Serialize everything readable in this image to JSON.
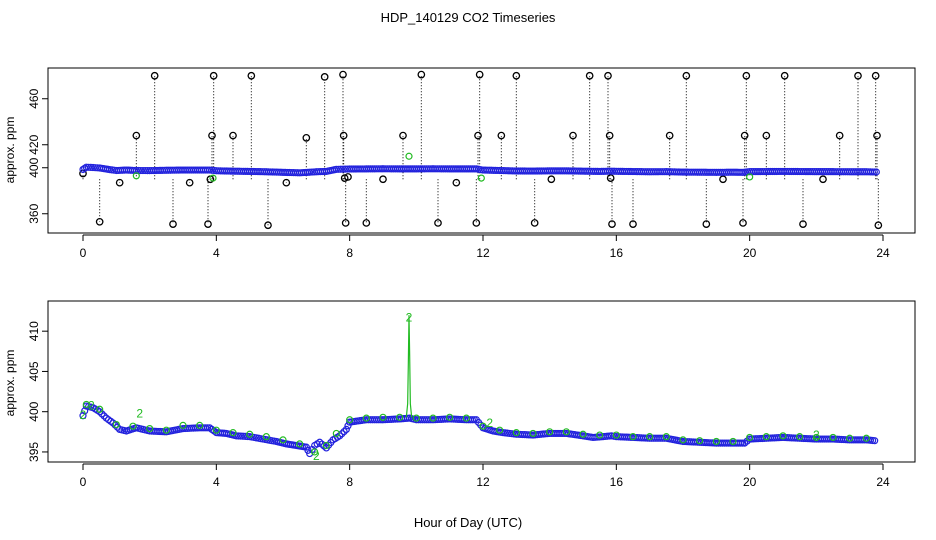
{
  "figure": {
    "title": "HDP_140129  CO2 Timeseries",
    "shared_xlabel": "Hour of Day (UTC)"
  },
  "colors": {
    "axis": "#000000",
    "raw_marker": "#000000",
    "blue_marker": "#2222dd",
    "green_marker": "#22bb22",
    "spike_line": "#000000"
  },
  "chart_data": [
    {
      "type": "scatter",
      "ylabel": "approx. ppm",
      "xlim": [
        0,
        24
      ],
      "ylim": [
        345,
        485
      ],
      "xticks": [
        0,
        4,
        8,
        12,
        16,
        20,
        24
      ],
      "yticks": [
        360,
        400,
        420,
        460
      ],
      "series": [
        {
          "marker": "circle-black",
          "x": [
            0.0,
            0.5,
            1.1,
            1.6,
            2.15,
            2.7,
            3.2,
            3.75,
            3.82,
            3.87,
            3.92,
            4.5,
            5.05,
            5.55,
            6.1,
            6.7,
            7.25,
            7.8,
            7.82,
            7.85,
            7.88,
            7.95,
            8.5,
            9.0,
            9.6,
            10.15,
            10.65,
            11.2,
            11.8,
            11.85,
            11.9,
            12.55,
            13.0,
            13.55,
            14.05,
            14.7,
            15.2,
            15.75,
            15.8,
            15.83,
            15.87,
            16.5,
            17.6,
            18.1,
            18.7,
            19.2,
            19.8,
            19.85,
            19.9,
            20.5,
            21.05,
            21.6,
            22.2,
            22.7,
            23.25,
            23.78,
            23.82,
            23.86
          ],
          "y": [
            395,
            353,
            387,
            428,
            480,
            351,
            387,
            351,
            390,
            428,
            480,
            428,
            480,
            350,
            387,
            426,
            479,
            481,
            428,
            391,
            352,
            392,
            352,
            390,
            428,
            481,
            352,
            387,
            352,
            428,
            481,
            428,
            480,
            352,
            390,
            428,
            480,
            480,
            428,
            391,
            351,
            351,
            428,
            480,
            351,
            390,
            352,
            428,
            480,
            428,
            480,
            351,
            390,
            428,
            480,
            480,
            428,
            350
          ]
        },
        {
          "marker": "circle-blue",
          "x": [
            0.0,
            0.1,
            0.3,
            0.5,
            0.8,
            1.0,
            1.3,
            1.6,
            2.0,
            2.5,
            3.0,
            3.5,
            3.8,
            4.0,
            4.5,
            5.0,
            5.5,
            6.0,
            6.5,
            6.8,
            7.0,
            7.3,
            7.6,
            8.0,
            8.5,
            9.0,
            9.5,
            10.0,
            10.5,
            11.0,
            11.5,
            11.8,
            12.0,
            12.5,
            13.0,
            13.5,
            14.0,
            14.5,
            15.0,
            15.5,
            15.8,
            16.0,
            16.5,
            17.0,
            17.5,
            18.0,
            18.5,
            19.0,
            19.5,
            19.8,
            20.0,
            20.5,
            21.0,
            21.5,
            22.0,
            22.5,
            23.0,
            23.5,
            23.8
          ],
          "y": [
            398.5,
            400.5,
            400.2,
            399.8,
            398.4,
            397.6,
            398.0,
            397.6,
            397.5,
            397.8,
            398.0,
            398.0,
            398.0,
            397.4,
            397.0,
            396.8,
            396.5,
            396.0,
            395.6,
            396.1,
            396.5,
            396.8,
            398.6,
            398.9,
            399.0,
            399.1,
            399.0,
            399.0,
            399.1,
            399.0,
            399.0,
            399.0,
            398.0,
            397.6,
            397.2,
            397.1,
            397.3,
            397.3,
            397.0,
            396.8,
            397.0,
            396.9,
            396.7,
            396.5,
            396.6,
            396.2,
            396.1,
            396.0,
            396.1,
            396.0,
            396.6,
            396.7,
            396.8,
            396.7,
            396.6,
            396.6,
            396.5,
            396.5,
            396.3
          ]
        },
        {
          "marker": "circle-green",
          "x": [
            1.6,
            3.9,
            9.78,
            11.95,
            20.0
          ],
          "y": [
            393,
            391,
            410,
            391,
            392
          ]
        }
      ]
    },
    {
      "type": "scatter",
      "ylabel": "approx. ppm",
      "xlim": [
        0,
        24
      ],
      "ylim": [
        394,
        413.5
      ],
      "xticks": [
        0,
        4,
        8,
        12,
        16,
        20,
        24
      ],
      "yticks": [
        395,
        400,
        405,
        410
      ],
      "series": [
        {
          "marker": "circle-blue",
          "x": [
            0.0,
            0.1,
            0.3,
            0.5,
            0.7,
            0.9,
            1.1,
            1.3,
            1.6,
            2.0,
            2.5,
            3.0,
            3.5,
            3.8,
            4.0,
            4.3,
            4.6,
            5.0,
            5.4,
            5.8,
            6.1,
            6.4,
            6.7,
            6.8,
            6.95,
            7.1,
            7.3,
            7.5,
            7.7,
            7.9,
            8.0,
            8.5,
            9.0,
            9.5,
            9.8,
            10.0,
            10.5,
            11.0,
            11.5,
            11.8,
            12.0,
            12.3,
            12.6,
            13.0,
            13.5,
            14.0,
            14.5,
            15.0,
            15.3,
            15.6,
            15.85,
            16.0,
            16.5,
            17.0,
            17.5,
            18.0,
            18.5,
            19.0,
            19.5,
            19.85,
            20.0,
            20.5,
            21.0,
            21.5,
            22.0,
            22.5,
            23.0,
            23.5,
            23.75
          ],
          "y": [
            399.5,
            400.7,
            400.5,
            400.0,
            399.2,
            398.6,
            397.8,
            397.6,
            398.0,
            397.6,
            397.5,
            397.9,
            398.0,
            398.0,
            397.4,
            397.3,
            397.0,
            396.9,
            396.6,
            396.3,
            396.0,
            395.8,
            395.6,
            394.8,
            395.8,
            396.2,
            395.5,
            396.5,
            397.0,
            397.8,
            398.7,
            399.0,
            399.0,
            399.1,
            399.2,
            399.0,
            399.0,
            399.1,
            399.0,
            399.0,
            398.0,
            397.6,
            397.4,
            397.2,
            397.1,
            397.3,
            397.3,
            397.0,
            396.8,
            396.9,
            397.0,
            396.9,
            396.8,
            396.7,
            396.7,
            396.3,
            396.2,
            396.1,
            396.1,
            396.1,
            396.6,
            396.7,
            396.8,
            396.7,
            396.6,
            396.6,
            396.5,
            396.5,
            396.4
          ]
        },
        {
          "marker": "circle-green",
          "x": [
            0.1,
            0.5,
            1.0,
            1.5,
            2.0,
            2.5,
            3.0,
            3.5,
            4.0,
            4.5,
            5.0,
            5.5,
            6.0,
            6.5,
            6.95,
            7.3,
            7.6,
            8.0,
            8.5,
            9.0,
            9.5,
            10.0,
            10.5,
            11.0,
            11.5,
            12.0,
            12.5,
            13.0,
            13.5,
            14.0,
            14.5,
            15.0,
            15.5,
            16.0,
            16.5,
            17.0,
            17.5,
            18.0,
            18.5,
            19.0,
            19.5,
            20.0,
            20.5,
            21.0,
            21.5,
            22.0,
            22.5,
            23.0,
            23.5
          ],
          "y": [
            400.9,
            400.3,
            398.4,
            398.2,
            397.9,
            397.7,
            398.3,
            398.3,
            397.7,
            397.4,
            397.2,
            396.9,
            396.5,
            396.0,
            395.0,
            395.8,
            397.3,
            399.0,
            399.2,
            399.3,
            399.3,
            399.2,
            399.2,
            399.3,
            399.2,
            398.2,
            397.7,
            397.4,
            397.3,
            397.5,
            397.5,
            397.2,
            397.1,
            397.1,
            396.9,
            396.9,
            396.9,
            396.5,
            396.4,
            396.3,
            396.3,
            396.8,
            396.9,
            397.0,
            396.9,
            396.8,
            396.8,
            396.7,
            396.7
          ]
        },
        {
          "marker": "digit-green",
          "label": "2",
          "x": [
            0.0,
            0.25,
            1.7,
            7.0,
            9.78,
            12.2,
            22.0
          ],
          "y": [
            399.6,
            400.8,
            399.8,
            394.5,
            411.7,
            398.6,
            397.1
          ]
        },
        {
          "marker": "spike-line-green",
          "x": [
            9.7,
            9.74,
            9.76,
            9.78,
            9.8,
            9.82,
            9.86
          ],
          "y": [
            399.3,
            401.0,
            406.0,
            412.0,
            407.0,
            401.0,
            399.3
          ]
        }
      ]
    }
  ]
}
